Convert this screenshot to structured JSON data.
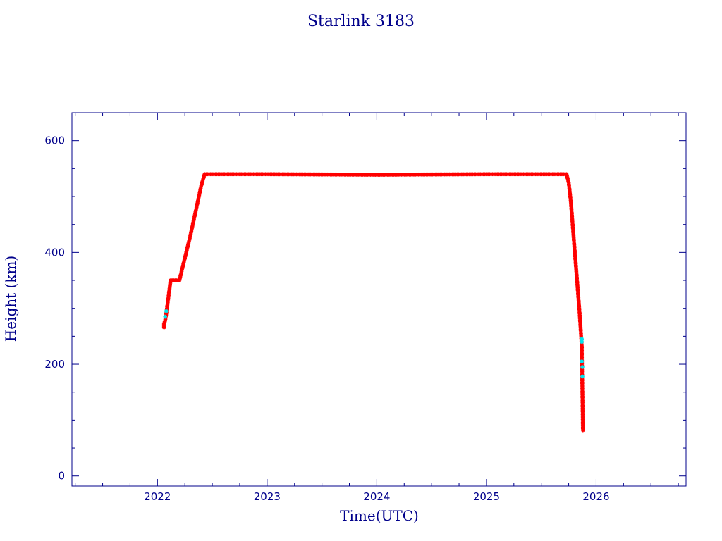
{
  "colors": {
    "text": "#00008b",
    "frame": "#00008b",
    "points": "#ff0000",
    "points_secondary": "#00e5ee",
    "line": "#8b0000",
    "background": "#ffffff"
  },
  "chart_data": {
    "type": "scatter",
    "title": "Starlink 3183",
    "xlabel": "Time(UTC)",
    "ylabel": "Height (km)",
    "xlim": [
      2021.22,
      2026.82
    ],
    "ylim": [
      -18,
      650
    ],
    "x_ticks": [
      2022,
      2023,
      2024,
      2025,
      2026
    ],
    "x_tick_labels": [
      "2022",
      "2023",
      "2024",
      "2025",
      "2026"
    ],
    "x_minor_step": 0.25,
    "y_ticks": [
      0,
      200,
      400,
      600
    ],
    "y_tick_labels": [
      "0",
      "200",
      "400",
      "600"
    ],
    "y_minor_step": 50,
    "grid": false,
    "legend": "none",
    "marker": "asterisk",
    "series": [
      {
        "role": "primary",
        "points": [
          [
            2022.06,
            266
          ],
          [
            2022.06,
            272
          ],
          [
            2022.07,
            278
          ],
          [
            2022.08,
            290
          ],
          [
            2022.09,
            305
          ],
          [
            2022.1,
            320
          ],
          [
            2022.11,
            335
          ],
          [
            2022.12,
            350
          ],
          [
            2022.2,
            350
          ],
          [
            2022.21,
            358
          ],
          [
            2022.25,
            390
          ],
          [
            2022.3,
            430
          ],
          [
            2022.35,
            475
          ],
          [
            2022.4,
            520
          ],
          [
            2022.43,
            540
          ],
          [
            2023.0,
            540
          ],
          [
            2024.0,
            539
          ],
          [
            2025.0,
            540
          ],
          [
            2025.73,
            540
          ],
          [
            2025.75,
            525
          ],
          [
            2025.77,
            490
          ],
          [
            2025.79,
            440
          ],
          [
            2025.81,
            390
          ],
          [
            2025.83,
            340
          ],
          [
            2025.85,
            290
          ],
          [
            2025.86,
            260
          ],
          [
            2025.87,
            230
          ],
          [
            2025.87,
            215
          ],
          [
            2025.88,
            82
          ]
        ]
      },
      {
        "role": "secondary",
        "points": [
          [
            2022.07,
            285
          ],
          [
            2022.08,
            295
          ],
          [
            2025.87,
            245
          ],
          [
            2025.87,
            240
          ],
          [
            2025.87,
            205
          ],
          [
            2025.875,
            195
          ],
          [
            2025.875,
            178
          ]
        ]
      }
    ]
  }
}
